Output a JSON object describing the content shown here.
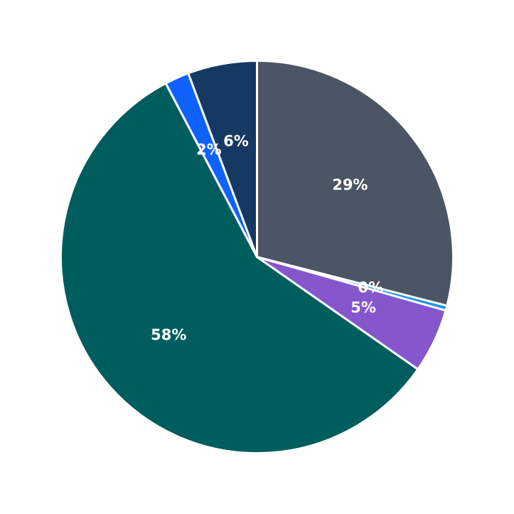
{
  "chart_data": {
    "type": "pie",
    "start_angle": "12 o'clock",
    "direction": "clockwise",
    "slices": [
      {
        "label": "29%",
        "value": 29.0,
        "color": "#4b5563"
      },
      {
        "label": "0%",
        "value": 0.4,
        "color": "#1192e8"
      },
      {
        "label": "5%",
        "value": 5.3,
        "color": "#8556cc"
      },
      {
        "label": "58%",
        "value": 57.6,
        "color": "#005d5d"
      },
      {
        "label": "2%",
        "value": 2.0,
        "color": "#0f62fe"
      },
      {
        "label": "6%",
        "value": 5.7,
        "color": "#153963"
      }
    ],
    "slice_border_color": "#ffffff"
  }
}
